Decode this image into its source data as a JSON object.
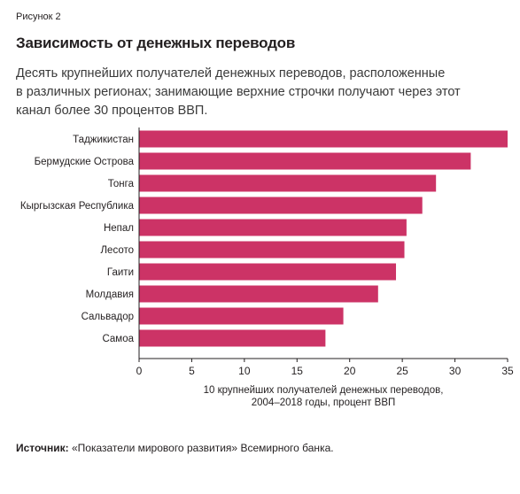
{
  "figure_label": "Рисунок 2",
  "title": "Зависимость от денежных переводов",
  "subtitle_lines": [
    "Десять крупнейших получателей денежных переводов, расположенные",
    "в различных регионах; занимающие верхние строчки получают через этот",
    "канал более 30 процентов ВВП."
  ],
  "colors": {
    "bar": "#cc3366",
    "axis": "#231f20",
    "text": "#231f20"
  },
  "chart_data": {
    "type": "bar",
    "orientation": "horizontal",
    "categories": [
      "Таджикистан",
      "Бермудские Острова",
      "Тонга",
      "Кыргызская Республика",
      "Непал",
      "Лесото",
      "Гаити",
      "Молдавия",
      "Сальвадор",
      "Самоа"
    ],
    "values": [
      35,
      31.5,
      28.2,
      26.9,
      25.4,
      25.2,
      24.4,
      22.7,
      19.4,
      17.7
    ],
    "xlim": [
      0,
      35
    ],
    "xticks": [
      "0",
      "5",
      "10",
      "15",
      "20",
      "25",
      "30",
      "35"
    ],
    "xlabel_lines": [
      "10 крупнейших получателей денежных переводов,",
      "2004–2018 годы, процент ВВП"
    ],
    "grid": false,
    "legend": "none"
  },
  "source": {
    "label": "Источник:",
    "text": " «Показатели мирового развития» Всемирного банка."
  }
}
